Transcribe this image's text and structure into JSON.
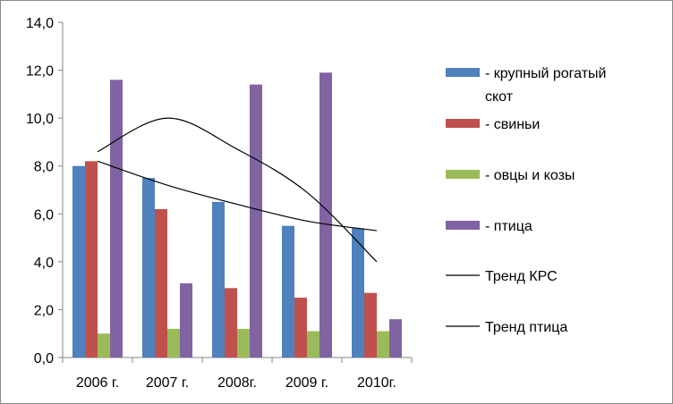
{
  "chart_data": {
    "type": "bar",
    "categories": [
      "2006 г.",
      "2007 г.",
      "2008г.",
      "2009 г.",
      "2010г."
    ],
    "series": [
      {
        "name": "- крупный рогатый скот",
        "color": "#4f81bd",
        "values": [
          8.0,
          7.5,
          6.5,
          5.5,
          5.4
        ]
      },
      {
        "name": "- свиньи",
        "color": "#c0504d",
        "values": [
          8.2,
          6.2,
          2.9,
          2.5,
          2.7
        ]
      },
      {
        "name": "- овцы и козы",
        "color": "#9bbb59",
        "values": [
          1.0,
          1.2,
          1.2,
          1.1,
          1.1
        ]
      },
      {
        "name": "- птица",
        "color": "#8064a2",
        "values": [
          11.6,
          3.1,
          11.4,
          11.9,
          1.6
        ]
      }
    ],
    "trendlines": [
      {
        "name": "Тренд КРС",
        "type": "logarithmic",
        "color": "#000000",
        "values": [
          8.2,
          7.2,
          6.4,
          5.7,
          5.3
        ]
      },
      {
        "name": "Тренд птица",
        "type": "polynomial",
        "color": "#000000",
        "values": [
          8.6,
          10.0,
          8.7,
          6.9,
          4.0
        ]
      }
    ],
    "y_ticks": [
      "0,0",
      "2,0",
      "4,0",
      "6,0",
      "8,0",
      "10,0",
      "12,0",
      "14,0"
    ],
    "ylim": [
      0,
      14
    ],
    "grid": false,
    "legend_position": "right",
    "title": "",
    "xlabel": "",
    "ylabel": ""
  }
}
